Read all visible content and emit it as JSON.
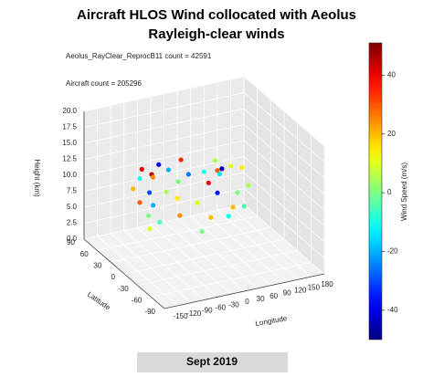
{
  "chart_data": {
    "type": "scatter3d",
    "title": "Aircraft HLOS Wind collocated with Aeolus",
    "subtitle": "Rayleigh-clear winds",
    "annotations": [
      "Aeolus_RayClear_ReprocB11 count = 42591",
      "Aircraft count = 205296"
    ],
    "footer": "Sept 2019",
    "x_label": "Longitude",
    "y_label": "Latitude",
    "z_label": "Height (km)",
    "colorbar_label": "Wind Speed (m/s)",
    "colormap": "jet",
    "xlim": [
      -180,
      180
    ],
    "xticks": [
      -150,
      -120,
      -90,
      -60,
      -30,
      0,
      30,
      60,
      90,
      120,
      150,
      180
    ],
    "ylim": [
      -90,
      90
    ],
    "yticks": [
      -90,
      -60,
      -30,
      0,
      30,
      60,
      90
    ],
    "zlim": [
      0,
      20
    ],
    "zticks": [
      {
        "value": 0,
        "label": "0.0"
      },
      2.5,
      {
        "value": 5,
        "label": "5.0"
      },
      7.5,
      {
        "value": 10,
        "label": "10.0"
      },
      12.5,
      {
        "value": 15,
        "label": "15.0"
      },
      17.5,
      {
        "value": 20,
        "label": "20.0"
      }
    ],
    "clim": [
      -50,
      51
    ],
    "cticks": [
      -40,
      -20,
      0,
      20,
      40
    ],
    "x": [
      -120,
      -110,
      -100,
      -95,
      -90,
      -85,
      -80,
      -75,
      -70,
      -60,
      -50,
      -40,
      -30,
      -20,
      -10,
      0,
      10,
      20,
      30,
      40,
      50,
      60,
      70,
      80,
      90,
      100,
      110,
      120,
      -105,
      -65,
      -5,
      15,
      35,
      55,
      75,
      95
    ],
    "y": [
      40,
      35,
      45,
      30,
      50,
      38,
      42,
      25,
      48,
      55,
      52,
      45,
      50,
      40,
      48,
      52,
      45,
      35,
      30,
      25,
      20,
      35,
      40,
      45,
      30,
      25,
      20,
      35,
      10,
      -10,
      0,
      5,
      -20,
      15,
      10,
      -5
    ],
    "z": [
      10,
      8,
      11,
      6,
      12,
      9,
      3,
      5,
      11,
      10,
      12,
      8,
      11,
      7,
      9,
      12,
      10,
      6,
      11,
      4,
      8,
      12,
      10,
      9,
      11,
      7,
      5,
      10,
      9,
      8,
      4,
      11,
      7,
      12,
      6,
      10
    ],
    "c": [
      20,
      30,
      -10,
      0,
      40,
      -30,
      10,
      -5,
      45,
      25,
      -40,
      5,
      -20,
      15,
      0,
      35,
      -25,
      10,
      -10,
      20,
      -35,
      5,
      30,
      -15,
      10,
      0,
      -5,
      15,
      -20,
      25,
      0,
      40,
      -10,
      -45,
      20,
      5
    ]
  }
}
